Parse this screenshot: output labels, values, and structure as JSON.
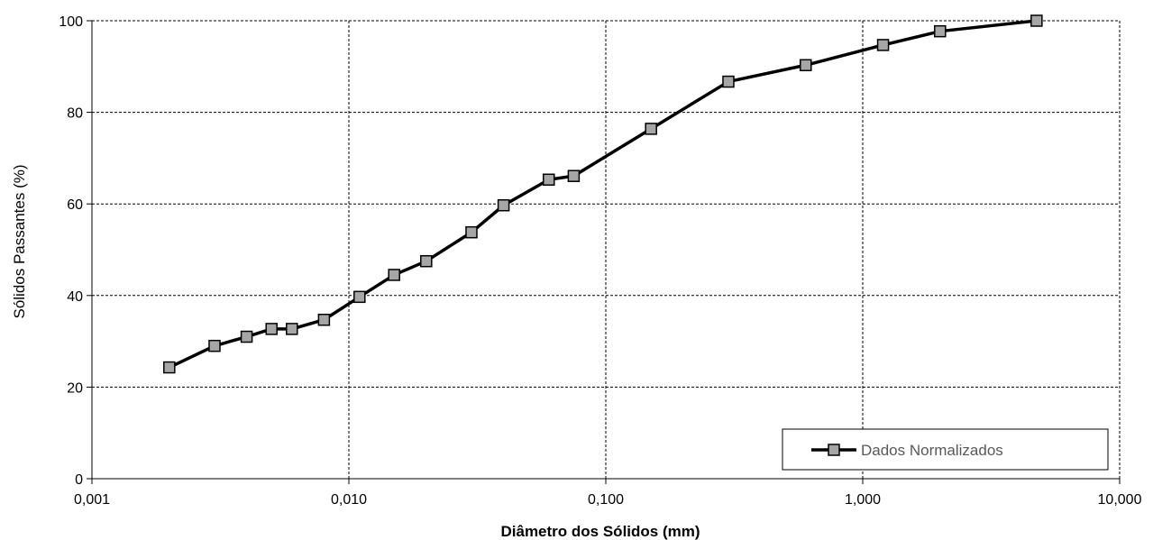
{
  "chart_data": {
    "type": "line",
    "title": "",
    "xlabel": "Diâmetro dos Sólidos (mm)",
    "ylabel": "Sólidos Passantes (%)",
    "x_scale": "log",
    "xlim": [
      0.001,
      10
    ],
    "ylim": [
      0,
      100
    ],
    "x_ticks": [
      0.001,
      0.01,
      0.1,
      1,
      10
    ],
    "x_tick_labels": [
      "0,001",
      "0,010",
      "0,100",
      "1,000",
      "10,000"
    ],
    "y_ticks": [
      0,
      20,
      40,
      60,
      80,
      100
    ],
    "y_tick_labels": [
      "0",
      "20",
      "40",
      "60",
      "80",
      "100"
    ],
    "grid": true,
    "legend_position": "bottom-right",
    "series": [
      {
        "name": "Dados Normalizados",
        "color": "#000000",
        "marker": "square",
        "marker_fill": "#a6a6a6",
        "x": [
          0.002,
          0.003,
          0.004,
          0.005,
          0.006,
          0.008,
          0.011,
          0.015,
          0.02,
          0.03,
          0.04,
          0.06,
          0.075,
          0.15,
          0.3,
          0.6,
          1.2,
          2.0,
          4.75
        ],
        "y": [
          24.3,
          29.0,
          31.0,
          32.7,
          32.7,
          34.7,
          39.7,
          44.5,
          47.5,
          53.8,
          59.7,
          65.3,
          66.1,
          76.4,
          86.7,
          90.3,
          94.7,
          97.7,
          100.0
        ]
      }
    ]
  }
}
